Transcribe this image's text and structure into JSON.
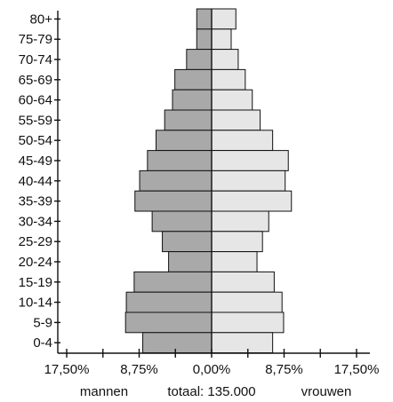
{
  "chart_data": {
    "type": "bar",
    "orientation": "horizontal-pyramid",
    "categories": [
      "80+",
      "75-79",
      "70-74",
      "65-69",
      "60-64",
      "55-59",
      "50-54",
      "45-49",
      "40-44",
      "35-39",
      "30-34",
      "25-29",
      "20-24",
      "15-19",
      "10-14",
      "5-9",
      "0-4"
    ],
    "series": [
      {
        "name": "mannen",
        "values": [
          1.9,
          1.9,
          3.2,
          4.7,
          5.0,
          6.0,
          7.1,
          8.2,
          9.2,
          9.8,
          7.6,
          6.3,
          5.5,
          9.9,
          10.9,
          11.0,
          8.8
        ]
      },
      {
        "name": "vrouwen",
        "values": [
          3.1,
          2.5,
          3.4,
          4.3,
          5.2,
          6.2,
          7.8,
          9.8,
          9.4,
          10.2,
          7.3,
          6.5,
          5.8,
          8.0,
          9.0,
          9.2,
          7.8
        ]
      }
    ],
    "x_tick_labels": [
      "17,50%",
      "8,75%",
      "0,00%",
      "8,75%",
      "17,50%"
    ],
    "xlim": [
      -17.5,
      17.5
    ],
    "grid": false,
    "footer": {
      "left": "mannen",
      "center": "totaal: 135.000",
      "right": "vrouwen"
    },
    "colors": {
      "mannen": "#a9a9a9",
      "vrouwen": "#e6e6e6",
      "axis": "#111111"
    }
  }
}
